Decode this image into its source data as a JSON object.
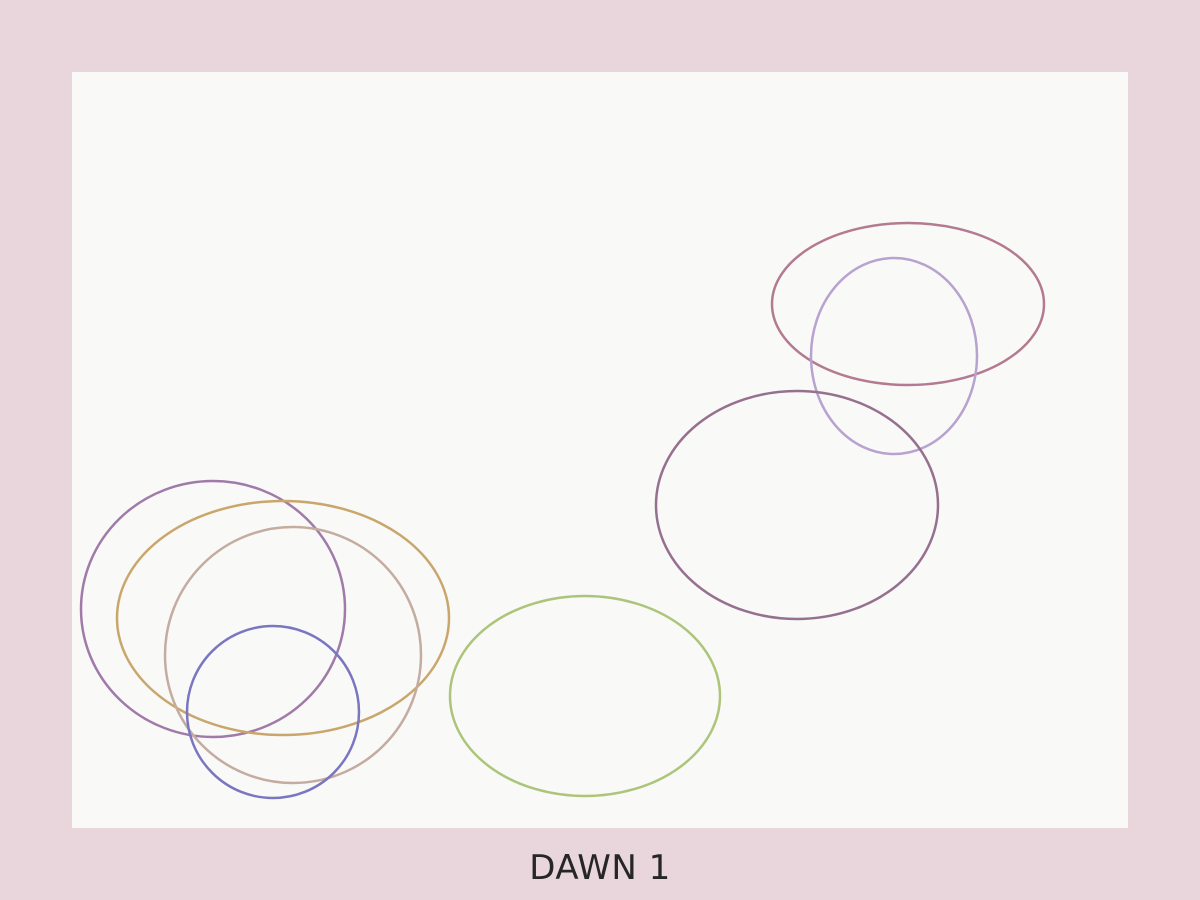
{
  "caption": "DAWN 1",
  "colors": {
    "background": "#e9d6dd",
    "canvas": "#f9f9f8",
    "caption_text": "#262626",
    "ellipses": [
      "#b47a91",
      "#b8a2cf",
      "#96708f",
      "#a07aa8",
      "#c9a66b",
      "#c4aca0",
      "#7a76c0",
      "#adc57a"
    ]
  }
}
